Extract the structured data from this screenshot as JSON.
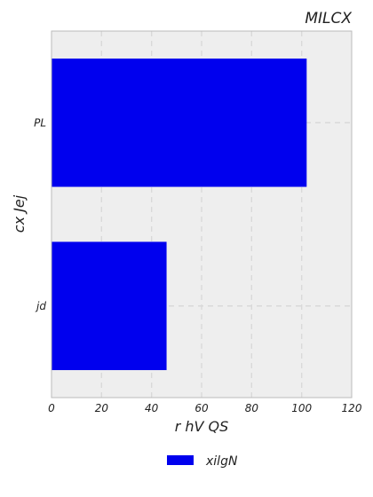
{
  "chart_data": {
    "type": "bar",
    "orientation": "horizontal",
    "title": "MILCX",
    "xlabel": "r hV QS",
    "ylabel": "cx  Jej",
    "categories": [
      "PL",
      "jd"
    ],
    "series": [
      {
        "name": "xilgN",
        "values": [
          102,
          46
        ],
        "color": "#0000ee"
      }
    ],
    "xlim": [
      0,
      120
    ],
    "xticks": [
      0,
      20,
      40,
      60,
      80,
      100,
      120
    ],
    "grid": true,
    "legend_position": "bottom-center",
    "background_color": "#eeeeee"
  }
}
